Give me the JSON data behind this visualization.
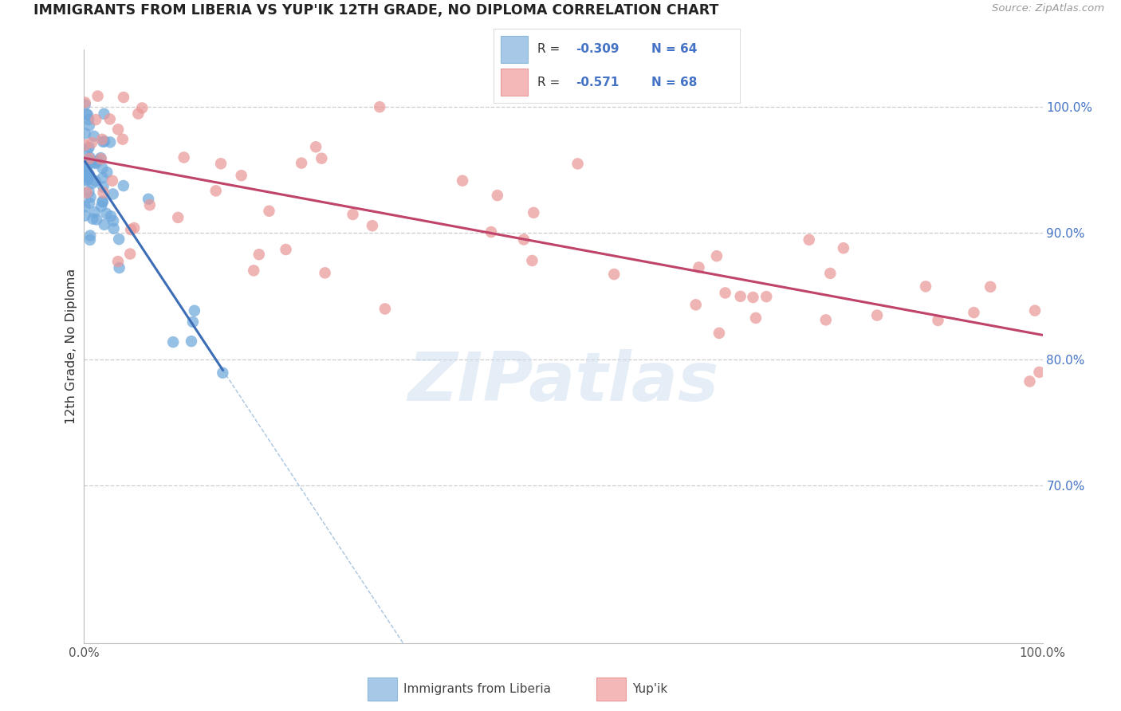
{
  "title": "IMMIGRANTS FROM LIBERIA VS YUP'IK 12TH GRADE, NO DIPLOMA CORRELATION CHART",
  "source": "Source: ZipAtlas.com",
  "ylabel": "12th Grade, No Diploma",
  "xmin": 0.0,
  "xmax": 1.0,
  "ymin": 0.575,
  "ymax": 1.045,
  "right_yticks": [
    0.7,
    0.8,
    0.9,
    1.0
  ],
  "right_yticklabels": [
    "70.0%",
    "80.0%",
    "90.0%",
    "100.0%"
  ],
  "legend_label1": "Immigrants from Liberia",
  "legend_label2": "Yup'ik",
  "blue_scatter_color": "#6fa8dc",
  "pink_scatter_color": "#ea9999",
  "blue_line_color": "#3d6eb5",
  "pink_line_color": "#c0436a",
  "dash_line_color": "#a8c4e0",
  "watermark": "ZIPatlas",
  "grid_color": "#cccccc",
  "background_color": "#ffffff",
  "R1": "-0.309",
  "N1": "64",
  "R2": "-0.571",
  "N2": "68",
  "legend_color": "#4472c4",
  "legend_text_color": "#222222"
}
